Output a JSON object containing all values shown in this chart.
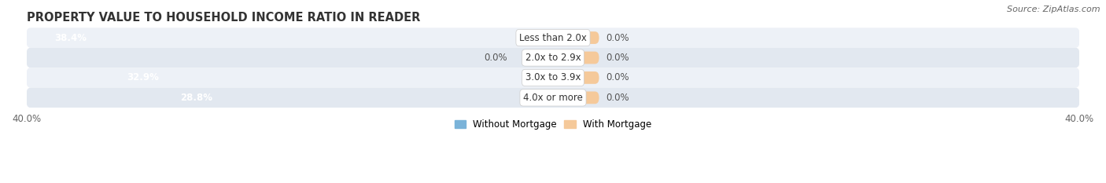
{
  "title": "PROPERTY VALUE TO HOUSEHOLD INCOME RATIO IN READER",
  "source": "Source: ZipAtlas.com",
  "categories": [
    "Less than 2.0x",
    "2.0x to 2.9x",
    "3.0x to 3.9x",
    "4.0x or more"
  ],
  "without_mortgage": [
    38.4,
    0.0,
    32.9,
    28.8
  ],
  "with_mortgage": [
    0.0,
    0.0,
    0.0,
    0.0
  ],
  "xlim": 40.0,
  "bar_color_without": "#7ab3d9",
  "bar_color_with": "#f5c99a",
  "bar_color_without_light": "#c5ddf0",
  "row_bg_colors": [
    "#edf1f7",
    "#e2e8f0"
  ],
  "legend_without": "Without Mortgage",
  "legend_with": "With Mortgage",
  "title_fontsize": 10.5,
  "label_fontsize": 8.5,
  "tick_fontsize": 8.5,
  "source_fontsize": 8,
  "bar_height": 0.62,
  "with_mortgage_stub": 3.5,
  "figsize": [
    14.06,
    2.33
  ],
  "dpi": 100
}
